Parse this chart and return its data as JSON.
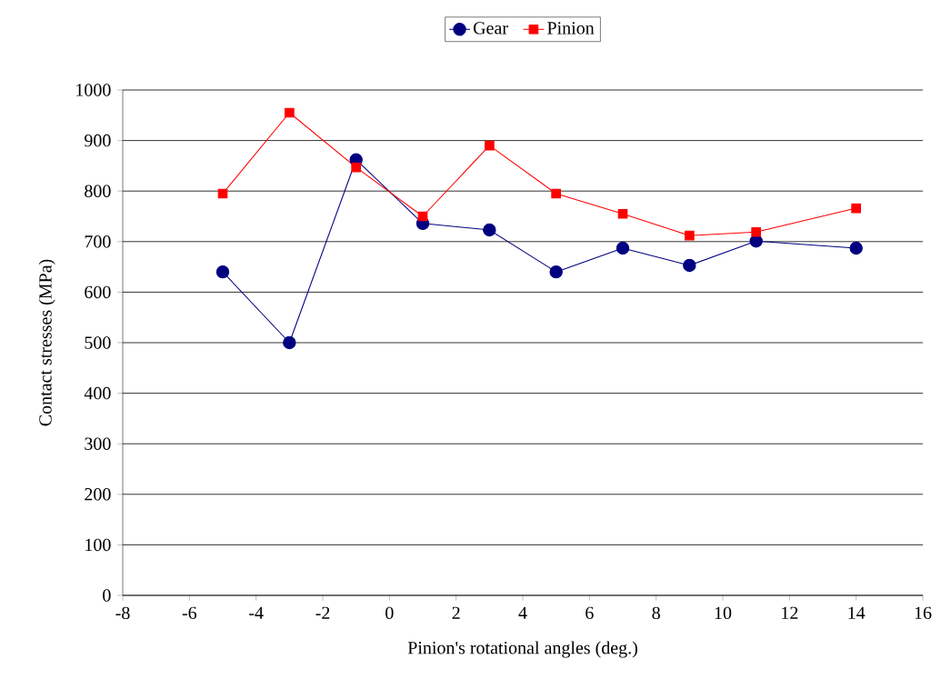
{
  "chart_data": {
    "type": "line",
    "xlabel": "Pinion's rotational angles (deg.)",
    "ylabel": "Contact stresses (MPa)",
    "x": [
      -5,
      -3,
      -1,
      1,
      3,
      5,
      7,
      9,
      11,
      14
    ],
    "series": [
      {
        "name": "Gear",
        "color": "#000080",
        "marker": "circle",
        "values": [
          640,
          500,
          862,
          736,
          723,
          640,
          687,
          653,
          701,
          687
        ]
      },
      {
        "name": "Pinion",
        "color": "#ff0000",
        "marker": "square",
        "values": [
          795,
          955,
          847,
          750,
          890,
          795,
          755,
          712,
          719,
          766
        ]
      }
    ],
    "xlim": [
      -8,
      16
    ],
    "xticks": [
      -8,
      -6,
      -4,
      -2,
      0,
      2,
      4,
      6,
      8,
      10,
      12,
      14,
      16
    ],
    "ylim": [
      0,
      1000
    ],
    "yticks": [
      0,
      100,
      200,
      300,
      400,
      500,
      600,
      700,
      800,
      900,
      1000
    ],
    "grid": "y",
    "legend": "top",
    "line_style": "solid"
  }
}
